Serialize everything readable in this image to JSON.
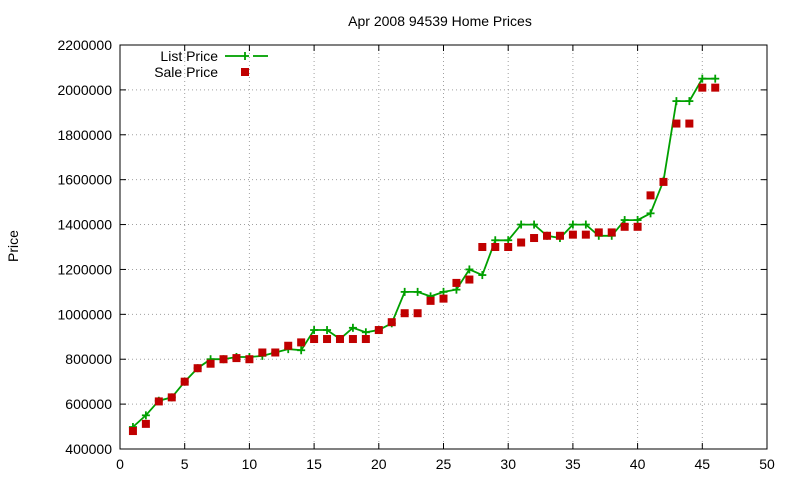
{
  "chart_data": {
    "type": "line",
    "title": "Apr 2008 94539 Home Prices",
    "xlabel": "",
    "ylabel": "Price",
    "xlim": [
      0,
      50
    ],
    "ylim": [
      400000,
      2200000
    ],
    "xticks": [
      0,
      5,
      10,
      15,
      20,
      25,
      30,
      35,
      40,
      45,
      50
    ],
    "yticks": [
      400000,
      600000,
      800000,
      1000000,
      1200000,
      1400000,
      1600000,
      1800000,
      2000000,
      2200000
    ],
    "grid": true,
    "legend_position": "top-left",
    "series": [
      {
        "name": "List Price",
        "style": "linespoints",
        "marker": "plus",
        "color": "#00a000",
        "x": [
          1,
          2,
          3,
          4,
          5,
          6,
          7,
          8,
          9,
          10,
          11,
          12,
          13,
          14,
          15,
          16,
          17,
          18,
          19,
          20,
          21,
          22,
          23,
          24,
          25,
          26,
          27,
          28,
          29,
          30,
          31,
          32,
          33,
          34,
          35,
          36,
          37,
          38,
          39,
          40,
          41,
          42,
          43,
          44,
          45,
          46
        ],
        "y": [
          498000,
          550000,
          615000,
          630000,
          700000,
          760000,
          800000,
          800000,
          810000,
          810000,
          815000,
          830000,
          845000,
          840000,
          930000,
          930000,
          890000,
          940000,
          920000,
          930000,
          960000,
          1100000,
          1100000,
          1080000,
          1100000,
          1110000,
          1200000,
          1175000,
          1330000,
          1330000,
          1400000,
          1400000,
          1350000,
          1340000,
          1400000,
          1400000,
          1350000,
          1350000,
          1420000,
          1420000,
          1450000,
          1595000,
          1950000,
          1950000,
          2050000,
          2050000
        ]
      },
      {
        "name": "Sale Price",
        "style": "points",
        "marker": "square",
        "color": "#c00000",
        "x": [
          1,
          2,
          3,
          4,
          5,
          6,
          7,
          8,
          9,
          10,
          11,
          12,
          13,
          14,
          15,
          16,
          17,
          18,
          19,
          20,
          21,
          22,
          23,
          24,
          25,
          26,
          27,
          28,
          29,
          30,
          31,
          32,
          33,
          34,
          35,
          36,
          37,
          38,
          39,
          40,
          41,
          42,
          43,
          44,
          45,
          46
        ],
        "y": [
          480000,
          512000,
          612000,
          630000,
          700000,
          760000,
          780000,
          800000,
          805000,
          800000,
          830000,
          830000,
          860000,
          875000,
          890000,
          890000,
          890000,
          890000,
          890000,
          930000,
          965000,
          1005000,
          1005000,
          1060000,
          1070000,
          1140000,
          1155000,
          1300000,
          1300000,
          1300000,
          1320000,
          1340000,
          1350000,
          1350000,
          1355000,
          1355000,
          1365000,
          1365000,
          1390000,
          1390000,
          1530000,
          1590000,
          1850000,
          1850000,
          2010000,
          2010000
        ]
      }
    ]
  }
}
